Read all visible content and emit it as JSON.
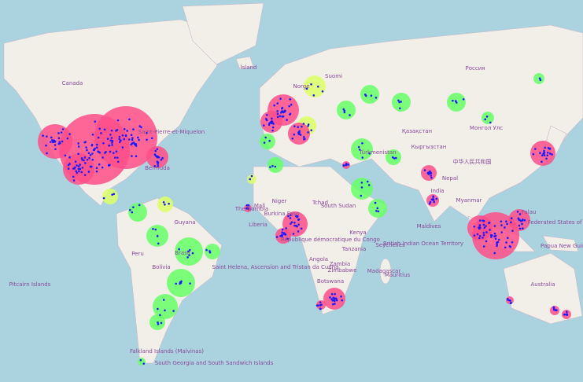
{
  "map": {
    "labels": [
      {
        "text": "Canada"
      },
      {
        "text": "Россия"
      },
      {
        "text": "Ísland"
      },
      {
        "text": "Norge"
      },
      {
        "text": "Suomi"
      },
      {
        "text": "Қазақстан"
      },
      {
        "text": "Монгол Улс"
      },
      {
        "text": "中华人民共和国"
      },
      {
        "text": "India"
      },
      {
        "text": "Nepal"
      },
      {
        "text": "Türkmenistan"
      },
      {
        "text": "Кыргызстан"
      },
      {
        "text": "Bermuda"
      },
      {
        "text": "Saint-Pierre-et-Miquelon"
      },
      {
        "text": "Niger"
      },
      {
        "text": "Tchad"
      },
      {
        "text": "Mali"
      },
      {
        "text": "The Gambia"
      },
      {
        "text": "Burkina Faso"
      },
      {
        "text": "Liberia"
      },
      {
        "text": "South Sudan"
      },
      {
        "text": "Kenya"
      },
      {
        "text": "République démocratique du Congo"
      },
      {
        "text": "Tanzania"
      },
      {
        "text": "Seychelles"
      },
      {
        "text": "Angola"
      },
      {
        "text": "Zambia"
      },
      {
        "text": "Zimbabwe"
      },
      {
        "text": "Botswana"
      },
      {
        "text": "Madagascar"
      },
      {
        "text": "Mauritius"
      },
      {
        "text": "British Indian Ocean Territory"
      },
      {
        "text": "Saint Helena, Ascension and Tristan da Cunha"
      },
      {
        "text": "Guyana"
      },
      {
        "text": "Peru"
      },
      {
        "text": "Brasil"
      },
      {
        "text": "Bolivia"
      },
      {
        "text": "Pitcairn Islands"
      },
      {
        "text": "Falkland Islands (Malvinas)"
      },
      {
        "text": "South Georgia and South Sandwich Islands"
      },
      {
        "text": "Australia"
      },
      {
        "text": "Papua New Guinea"
      },
      {
        "text": "Palau"
      },
      {
        "text": "Federated States of Micronesia"
      },
      {
        "text": "Myanmar"
      },
      {
        "text": "Maldives"
      }
    ]
  }
}
